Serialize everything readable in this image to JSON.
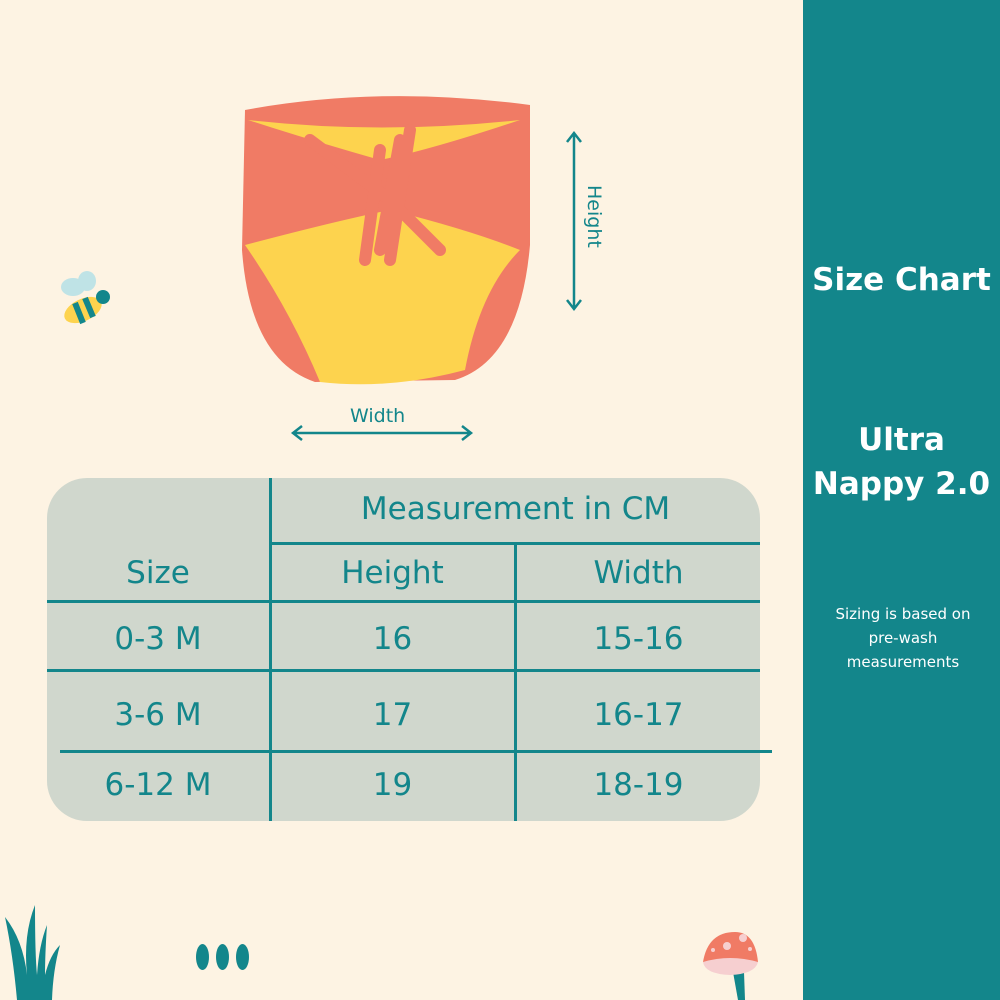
{
  "diagram": {
    "height_label": "Height",
    "width_label": "Width"
  },
  "table": {
    "size_header": "Size",
    "group_header": "Measurement in CM",
    "columns": [
      "Height",
      "Width"
    ],
    "rows": [
      {
        "size": "0-3 M",
        "height": "16",
        "width": "15-16"
      },
      {
        "size": "3-6 M",
        "height": "17",
        "width": "16-17"
      },
      {
        "size": "6-12 M",
        "height": "19",
        "width": "18-19"
      }
    ]
  },
  "sidebar": {
    "title": "Size Chart",
    "product_line1": "Ultra",
    "product_line2": "Nappy 2.0",
    "note": "Sizing is based on pre-wash measurements"
  },
  "colors": {
    "teal": "#13868b",
    "background": "#fdf3e3",
    "table": "#d0d7cd",
    "coral": "#f07b65",
    "yellow": "#fdd34e"
  },
  "pager": {
    "dots": 3
  }
}
